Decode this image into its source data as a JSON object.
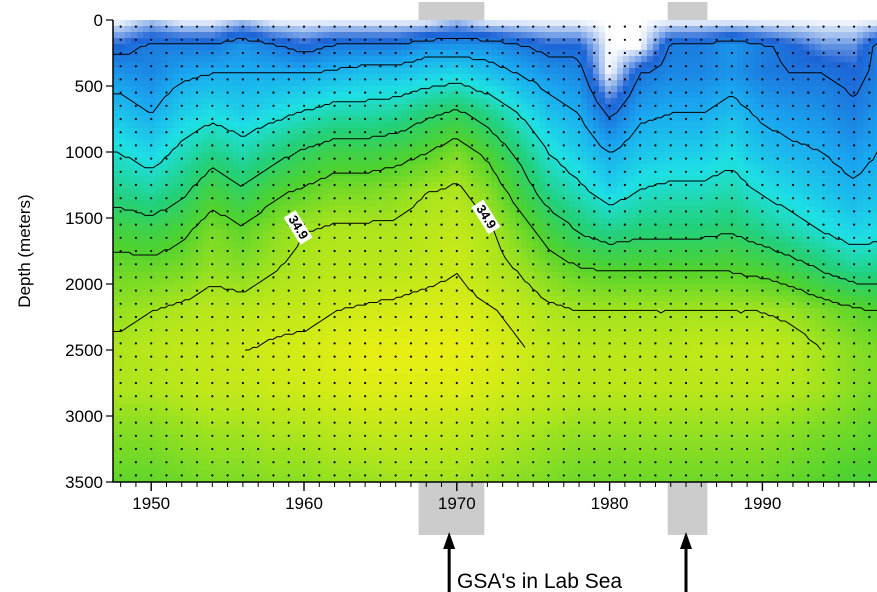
{
  "chart_data": {
    "type": "heatmap",
    "title": "",
    "xlabel": "",
    "ylabel": "Depth (meters)",
    "xlim": [
      1947.5,
      1997.5
    ],
    "ylim": [
      0,
      3500
    ],
    "y_inverted": true,
    "x_ticks": [
      1950,
      1960,
      1970,
      1980,
      1990
    ],
    "x_tick_labels": [
      "1950",
      "1960",
      "1970",
      "1980",
      "1990"
    ],
    "y_ticks": [
      0,
      500,
      1000,
      1500,
      2000,
      2500,
      3000,
      3500
    ],
    "y_tick_labels": [
      "0",
      "500",
      "1000",
      "1500",
      "2000",
      "2500",
      "3000",
      "3500"
    ],
    "contour_labels": [
      {
        "text": "34.9",
        "x": 1959.5,
        "y": 1580
      },
      {
        "text": "34.9",
        "x": 1971.8,
        "y": 1500
      }
    ],
    "highlight_periods": [
      {
        "from": 1967.5,
        "to": 1971.8
      },
      {
        "from": 1983.8,
        "to": 1986.4
      }
    ],
    "annotation": {
      "text": "GSA's in Lab Sea",
      "arrow_years": [
        1969.5,
        1985.0
      ]
    },
    "colormap": [
      "#ffffff",
      "#1d63d6",
      "#1aa6f0",
      "#1ee0e4",
      "#22d07a",
      "#4fd22e",
      "#aee51c",
      "#f0f012"
    ],
    "rows": [
      {
        "depth": 0,
        "values": [
          0.0,
          0.05,
          0.0,
          0.0,
          0.05,
          0.0,
          0.0,
          0.0,
          0.0,
          0.0,
          0.0,
          0.05,
          0.0,
          0.0,
          0.0,
          0.0,
          0.0,
          0.0,
          0.0,
          0.0,
          0.0,
          0.0,
          0.0,
          0.0,
          0.0,
          0.0
        ]
      },
      {
        "depth": 200,
        "values": [
          0.15,
          0.2,
          0.2,
          0.2,
          0.25,
          0.2,
          0.15,
          0.2,
          0.2,
          0.2,
          0.25,
          0.25,
          0.25,
          0.2,
          0.15,
          0.15,
          0.0,
          0.0,
          0.2,
          0.2,
          0.25,
          0.2,
          0.15,
          0.1,
          0.1,
          0.2
        ]
      },
      {
        "depth": 400,
        "values": [
          0.25,
          0.22,
          0.28,
          0.3,
          0.3,
          0.3,
          0.3,
          0.32,
          0.35,
          0.35,
          0.38,
          0.4,
          0.35,
          0.3,
          0.25,
          0.22,
          0.0,
          0.18,
          0.22,
          0.22,
          0.25,
          0.2,
          0.18,
          0.18,
          0.15,
          0.2
        ]
      },
      {
        "depth": 700,
        "values": [
          0.35,
          0.3,
          0.38,
          0.42,
          0.38,
          0.42,
          0.46,
          0.5,
          0.5,
          0.52,
          0.58,
          0.62,
          0.55,
          0.45,
          0.35,
          0.3,
          0.16,
          0.28,
          0.3,
          0.3,
          0.34,
          0.28,
          0.26,
          0.24,
          0.2,
          0.25
        ]
      },
      {
        "depth": 1000,
        "values": [
          0.45,
          0.4,
          0.48,
          0.55,
          0.5,
          0.56,
          0.62,
          0.66,
          0.66,
          0.68,
          0.72,
          0.78,
          0.7,
          0.58,
          0.45,
          0.38,
          0.3,
          0.36,
          0.38,
          0.38,
          0.42,
          0.35,
          0.32,
          0.3,
          0.26,
          0.3
        ]
      },
      {
        "depth": 1300,
        "values": [
          0.55,
          0.52,
          0.58,
          0.68,
          0.62,
          0.7,
          0.74,
          0.78,
          0.78,
          0.8,
          0.84,
          0.86,
          0.8,
          0.68,
          0.55,
          0.48,
          0.4,
          0.46,
          0.48,
          0.48,
          0.5,
          0.44,
          0.4,
          0.36,
          0.32,
          0.35
        ]
      },
      {
        "depth": 1600,
        "values": [
          0.68,
          0.66,
          0.7,
          0.78,
          0.74,
          0.8,
          0.84,
          0.86,
          0.86,
          0.86,
          0.88,
          0.9,
          0.86,
          0.78,
          0.68,
          0.6,
          0.55,
          0.58,
          0.58,
          0.58,
          0.6,
          0.55,
          0.5,
          0.45,
          0.4,
          0.42
        ]
      },
      {
        "depth": 1900,
        "values": [
          0.76,
          0.76,
          0.78,
          0.82,
          0.8,
          0.84,
          0.86,
          0.88,
          0.88,
          0.88,
          0.9,
          0.92,
          0.88,
          0.84,
          0.78,
          0.74,
          0.72,
          0.72,
          0.72,
          0.72,
          0.72,
          0.7,
          0.66,
          0.6,
          0.55,
          0.55
        ]
      },
      {
        "depth": 2200,
        "values": [
          0.82,
          0.84,
          0.86,
          0.88,
          0.88,
          0.9,
          0.9,
          0.92,
          0.93,
          0.94,
          0.95,
          0.95,
          0.93,
          0.9,
          0.86,
          0.84,
          0.84,
          0.84,
          0.84,
          0.84,
          0.84,
          0.84,
          0.82,
          0.78,
          0.74,
          0.72
        ]
      },
      {
        "depth": 2500,
        "values": [
          0.86,
          0.88,
          0.9,
          0.9,
          0.92,
          0.93,
          0.94,
          0.96,
          0.98,
          0.98,
          0.98,
          0.98,
          0.96,
          0.93,
          0.9,
          0.88,
          0.88,
          0.88,
          0.88,
          0.9,
          0.9,
          0.9,
          0.88,
          0.84,
          0.8,
          0.78
        ]
      },
      {
        "depth": 2800,
        "values": [
          0.86,
          0.86,
          0.88,
          0.9,
          0.9,
          0.92,
          0.93,
          0.94,
          0.96,
          0.96,
          0.96,
          0.96,
          0.94,
          0.92,
          0.9,
          0.88,
          0.88,
          0.88,
          0.88,
          0.88,
          0.88,
          0.88,
          0.86,
          0.84,
          0.8,
          0.78
        ]
      },
      {
        "depth": 3100,
        "values": [
          0.8,
          0.8,
          0.82,
          0.84,
          0.84,
          0.86,
          0.86,
          0.88,
          0.9,
          0.9,
          0.9,
          0.9,
          0.88,
          0.86,
          0.84,
          0.82,
          0.82,
          0.82,
          0.82,
          0.82,
          0.82,
          0.82,
          0.8,
          0.78,
          0.76,
          0.74
        ]
      },
      {
        "depth": 3500,
        "values": [
          0.74,
          0.74,
          0.76,
          0.78,
          0.78,
          0.8,
          0.8,
          0.82,
          0.82,
          0.84,
          0.84,
          0.84,
          0.82,
          0.8,
          0.78,
          0.76,
          0.76,
          0.76,
          0.76,
          0.76,
          0.76,
          0.76,
          0.74,
          0.72,
          0.7,
          0.7
        ]
      }
    ],
    "columns_years": [
      1948,
      1950,
      1952,
      1954,
      1956,
      1958,
      1960,
      1962,
      1964,
      1966,
      1968,
      1970,
      1972,
      1974,
      1976,
      1978,
      1980,
      1982,
      1984,
      1986,
      1988,
      1990,
      1992,
      1994,
      1996,
      1997.5
    ]
  }
}
